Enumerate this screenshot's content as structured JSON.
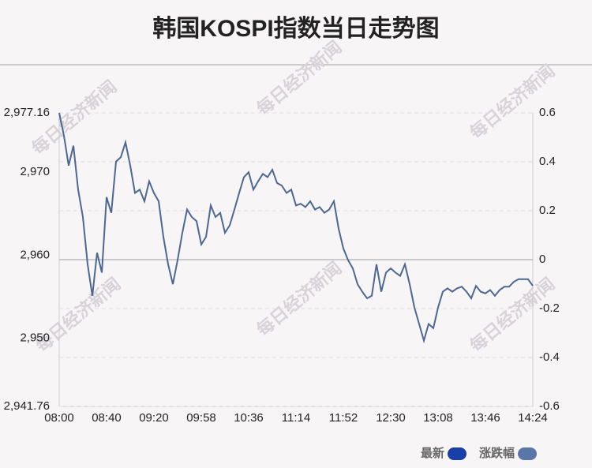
{
  "chart_data": {
    "type": "line",
    "title": "韩国KOSPI指数当日走势图",
    "watermark": "每日经济新闻",
    "categories": [
      "08:00",
      null,
      null,
      null,
      null,
      null,
      null,
      null,
      null,
      null,
      "08:40",
      null,
      null,
      null,
      null,
      null,
      null,
      null,
      null,
      null,
      "09:20",
      null,
      null,
      null,
      null,
      null,
      null,
      null,
      null,
      null,
      "09:58",
      null,
      null,
      null,
      null,
      null,
      null,
      null,
      null,
      null,
      "10:36",
      null,
      null,
      null,
      null,
      null,
      null,
      null,
      null,
      null,
      "11:14",
      null,
      null,
      null,
      null,
      null,
      null,
      null,
      null,
      null,
      "11:52",
      null,
      null,
      null,
      null,
      null,
      null,
      null,
      null,
      null,
      "12:30",
      null,
      null,
      null,
      null,
      null,
      null,
      null,
      null,
      null,
      "13:08",
      null,
      null,
      null,
      null,
      null,
      null,
      null,
      null,
      null,
      "13:46",
      null,
      null,
      null,
      null,
      null,
      null,
      null,
      null,
      null,
      "14:24"
    ],
    "series": [
      {
        "name": "最新",
        "color": "#4d6794",
        "values": [
          2977.16,
          2974.4,
          2970.8,
          2973.2,
          2967.9,
          2964.6,
          2958.9,
          2955.1,
          2960.3,
          2957.9,
          2967.0,
          2965.1,
          2971.3,
          2971.8,
          2973.6,
          2970.8,
          2967.5,
          2967.9,
          2966.5,
          2968.9,
          2967.5,
          2966.5,
          2962.2,
          2958.9,
          2956.5,
          2959.4,
          2962.7,
          2965.5,
          2964.6,
          2964.1,
          2961.3,
          2962.2,
          2966.0,
          2964.6,
          2965.1,
          2962.7,
          2963.6,
          2965.5,
          2967.5,
          2969.4,
          2970.0,
          2967.9,
          2968.9,
          2969.8,
          2969.4,
          2970.3,
          2968.7,
          2968.4,
          2967.5,
          2967.9,
          2966.0,
          2966.2,
          2965.8,
          2966.5,
          2965.5,
          2965.8,
          2965.1,
          2965.5,
          2966.5,
          2963.2,
          2960.8,
          2959.4,
          2958.4,
          2956.5,
          2955.6,
          2954.8,
          2955.1,
          2958.9,
          2955.6,
          2957.9,
          2958.4,
          2957.9,
          2957.5,
          2958.9,
          2956.5,
          2953.7,
          2951.7,
          2949.7,
          2951.7,
          2951.2,
          2953.7,
          2955.6,
          2956.0,
          2955.6,
          2956.0,
          2956.2,
          2955.6,
          2954.8,
          2956.3,
          2955.6,
          2955.4,
          2955.8,
          2955.1,
          2955.8,
          2956.2,
          2956.2,
          2956.8,
          2957.1,
          2957.1,
          2957.1,
          2956.3
        ]
      }
    ],
    "legend": [
      {
        "name": "最新",
        "color": "#1a3fa8"
      },
      {
        "name": "涨跌幅",
        "color": "#5a76a8"
      }
    ],
    "ylim": [
      2941.76,
      2977.16
    ],
    "yticks": [
      {
        "value": 2941.76,
        "label": "2,941.76"
      },
      {
        "value": 2950,
        "label": "2,950"
      },
      {
        "value": 2960,
        "label": "2,960"
      },
      {
        "value": 2970,
        "label": "2,970"
      },
      {
        "value": 2977.16,
        "label": "2,977.16"
      }
    ],
    "y2lim": [
      -0.6,
      0.6
    ],
    "y2ticks": [
      -0.6,
      -0.4,
      -0.2,
      0,
      0.2,
      0.4,
      0.6
    ],
    "grid": true
  }
}
